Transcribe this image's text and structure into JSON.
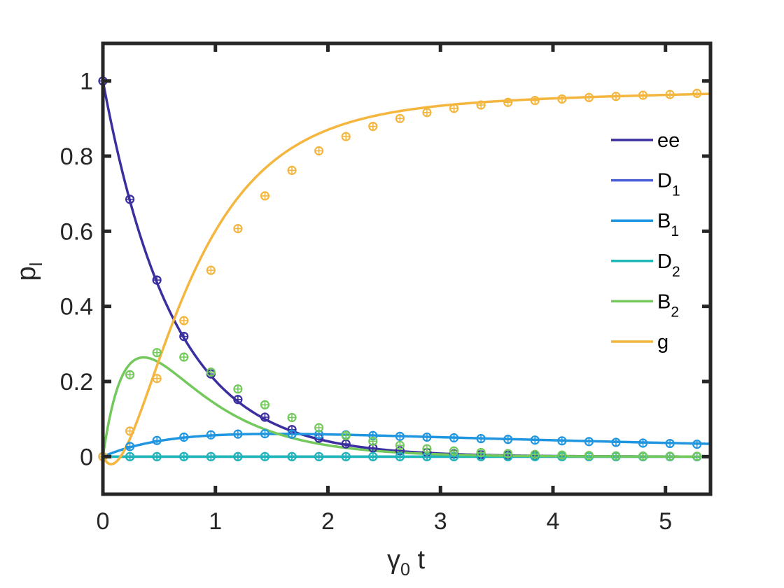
{
  "chart_data": {
    "type": "line",
    "xlabel": {
      "main": "γ",
      "sub": "0",
      "suffix": " t"
    },
    "ylabel": {
      "main": "p",
      "sub": "l"
    },
    "xlim": [
      0,
      5.4
    ],
    "ylim": [
      -0.1,
      1.1
    ],
    "xticks": [
      0,
      1,
      2,
      3,
      4,
      5
    ],
    "xtick_labels": [
      "0",
      "1",
      "2",
      "3",
      "4",
      "5"
    ],
    "yticks": [
      0,
      0.2,
      0.4,
      0.6,
      0.8,
      1
    ],
    "ytick_labels": [
      "0",
      "0.2",
      "0.4",
      "0.6",
      "0.8",
      "1"
    ],
    "grid": false,
    "legend_position": "right",
    "marker_x": [
      0,
      0.24,
      0.48,
      0.72,
      0.96,
      1.2,
      1.44,
      1.68,
      1.92,
      2.16,
      2.4,
      2.64,
      2.88,
      3.12,
      3.36,
      3.6,
      3.84,
      4.08,
      4.32,
      4.56,
      4.8,
      5.04,
      5.28
    ],
    "series": [
      {
        "name": "ee",
        "name_main": "ee",
        "name_sub": "",
        "color": "#3b2fa0",
        "curve": {
          "kind": "exp",
          "k": 1.6
        },
        "marker_values": [
          1.0,
          0.685,
          0.47,
          0.32,
          0.22,
          0.152,
          0.105,
          0.072,
          0.049,
          0.034,
          0.023,
          0.016,
          0.011,
          0.0075,
          0.0052,
          0.0035,
          0.0024,
          0.0017,
          0.0011,
          0.0008,
          0.0005,
          0.0004,
          0.0003
        ]
      },
      {
        "name": "D_1",
        "name_main": "D",
        "name_sub": "1",
        "color": "#4a5ed6",
        "curve": {
          "kind": "zero"
        },
        "marker_values": [
          0,
          0,
          0,
          0,
          0,
          0,
          0,
          0,
          0,
          0,
          0,
          0,
          0,
          0,
          0,
          0,
          0,
          0,
          0,
          0,
          0,
          0,
          0
        ]
      },
      {
        "name": "B_1",
        "name_main": "B",
        "name_sub": "1",
        "color": "#2196e0",
        "curve": {
          "kind": "rise_decay",
          "A": 0.09,
          "a": 0.18,
          "b": 1.6
        },
        "marker_values": [
          0,
          0.027,
          0.043,
          0.052,
          0.058,
          0.06,
          0.061,
          0.06,
          0.059,
          0.058,
          0.056,
          0.054,
          0.052,
          0.05,
          0.048,
          0.046,
          0.044,
          0.042,
          0.04,
          0.038,
          0.036,
          0.035,
          0.033
        ]
      },
      {
        "name": "D_2",
        "name_main": "D",
        "name_sub": "2",
        "color": "#1fb8b8",
        "curve": {
          "kind": "zero"
        },
        "marker_values": [
          0,
          0,
          0,
          0,
          0,
          0,
          0,
          0,
          0,
          0,
          0,
          0,
          0,
          0,
          0,
          0,
          0,
          0,
          0,
          0,
          0,
          0,
          0
        ]
      },
      {
        "name": "B_2",
        "name_main": "B",
        "name_sub": "2",
        "color": "#74c95c",
        "curve": {
          "kind": "rise_decay",
          "A": 0.74,
          "a": 1.6,
          "b": 4.4
        },
        "marker_values": [
          0,
          0.218,
          0.277,
          0.265,
          0.225,
          0.18,
          0.138,
          0.104,
          0.077,
          0.056,
          0.041,
          0.03,
          0.021,
          0.015,
          0.011,
          0.008,
          0.0058,
          0.0041,
          0.003,
          0.0021,
          0.0015,
          0.0011,
          0.0008
        ]
      },
      {
        "name": "g",
        "name_main": "g",
        "name_sub": "",
        "color": "#f4b63f",
        "curve": {
          "kind": "complement"
        },
        "marker_values": [
          0,
          0.068,
          0.208,
          0.362,
          0.496,
          0.607,
          0.694,
          0.762,
          0.814,
          0.852,
          0.879,
          0.9,
          0.916,
          0.927,
          0.936,
          0.943,
          0.948,
          0.952,
          0.956,
          0.959,
          0.962,
          0.964,
          0.967
        ]
      }
    ]
  }
}
